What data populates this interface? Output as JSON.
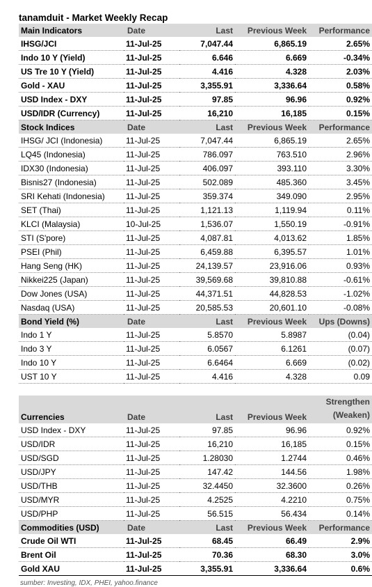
{
  "title": "tanamduit - Market Weekly Recap",
  "sections": [
    {
      "id": "main-indicators",
      "header": [
        "Main Indicators",
        "Date",
        "Last",
        "Previous Week",
        "Performance"
      ],
      "bold": true,
      "rows": [
        [
          "IHSG/JCI",
          "11-Jul-25",
          "7,047.44",
          "6,865.19",
          "2.65%"
        ],
        [
          "Indo 10 Y (Yield)",
          "11-Jul-25",
          "6.646",
          "6.669",
          "-0.34%"
        ],
        [
          "US Tre 10 Y (Yield)",
          "11-Jul-25",
          "4.416",
          "4.328",
          "2.03%"
        ],
        [
          "Gold - XAU",
          "11-Jul-25",
          "3,355.91",
          "3,336.64",
          "0.58%"
        ],
        [
          "USD Index - DXY",
          "11-Jul-25",
          "97.85",
          "96.96",
          "0.92%"
        ],
        [
          "USD/IDR (Currency)",
          "11-Jul-25",
          "16,210",
          "16,185",
          "0.15%"
        ]
      ]
    },
    {
      "id": "stock-indices",
      "header": [
        "Stock Indices",
        "Date",
        "Last",
        "Previous Week",
        "Performance"
      ],
      "bold": false,
      "rows": [
        [
          "IHSG/ JCI (Indonesia)",
          "11-Jul-25",
          "7,047.44",
          "6,865.19",
          "2.65%"
        ],
        [
          "LQ45 (Indonesia)",
          "11-Jul-25",
          "786.097",
          "763.510",
          "2.96%"
        ],
        [
          "IDX30 (Indonesia)",
          "11-Jul-25",
          "406.097",
          "393.110",
          "3.30%"
        ],
        [
          "Bisnis27 (Indonesia)",
          "11-Jul-25",
          "502.089",
          "485.360",
          "3.45%"
        ],
        [
          "SRI Kehati (Indonesia)",
          "11-Jul-25",
          "359.374",
          "349.090",
          "2.95%"
        ],
        [
          "SET (Thai)",
          "11-Jul-25",
          "1,121.13",
          "1,119.94",
          "0.11%"
        ],
        [
          "KLCI (Malaysia)",
          "10-Jul-25",
          "1,536.07",
          "1,550.19",
          "-0.91%"
        ],
        [
          "STI (S'pore)",
          "11-Jul-25",
          "4,087.81",
          "4,013.62",
          "1.85%"
        ],
        [
          "PSEI (Phil)",
          "11-Jul-25",
          "6,459.88",
          "6,395.57",
          "1.01%"
        ],
        [
          "Hang Seng (HK)",
          "11-Jul-25",
          "24,139.57",
          "23,916.06",
          "0.93%"
        ],
        [
          "Nikkei225 (Japan)",
          "11-Jul-25",
          "39,569.68",
          "39,810.88",
          "-0.61%"
        ],
        [
          "Dow Jones (USA)",
          "11-Jul-25",
          "44,371.51",
          "44,828.53",
          "-1.02%"
        ],
        [
          "Nasdaq (USA)",
          "11-Jul-25",
          "20,585.53",
          "20,601.10",
          "-0.08%"
        ]
      ]
    },
    {
      "id": "bond-yield",
      "header": [
        "Bond Yield (%)",
        "Date",
        "Last",
        "Previous Week",
        "Ups (Downs)"
      ],
      "bold": false,
      "rows": [
        [
          "Indo 1 Y",
          "11-Jul-25",
          "5.8570",
          "5.8987",
          "(0.04)"
        ],
        [
          "Indo 3 Y",
          "11-Jul-25",
          "6.0567",
          "6.1261",
          "(0.07)"
        ],
        [
          "Indo 10 Y",
          "11-Jul-25",
          "6.6464",
          "6.669",
          "(0.02)"
        ],
        [
          "UST 10 Y",
          "11-Jul-25",
          "4.416",
          "4.328",
          "0.09"
        ]
      ]
    },
    {
      "id": "currencies",
      "header": [
        "Currencies",
        "Date",
        "Last",
        "Previous Week",
        "Strengthen (Weaken)"
      ],
      "header_line1": "Strengthen",
      "header_line2": "(Weaken)",
      "bold": false,
      "rows": [
        [
          "USD Index - DXY",
          "11-Jul-25",
          "97.85",
          "96.96",
          "0.92%"
        ],
        [
          "USD/IDR",
          "11-Jul-25",
          "16,210",
          "16,185",
          "0.15%"
        ],
        [
          "USD/SGD",
          "11-Jul-25",
          "1.28030",
          "1.2744",
          "0.46%"
        ],
        [
          "USD/JPY",
          "11-Jul-25",
          "147.42",
          "144.56",
          "1.98%"
        ],
        [
          "USD/THB",
          "11-Jul-25",
          "32.4450",
          "32.3600",
          "0.26%"
        ],
        [
          "USD/MYR",
          "11-Jul-25",
          "4.2525",
          "4.2210",
          "0.75%"
        ],
        [
          "USD/PHP",
          "11-Jul-25",
          "56.515",
          "56.434",
          "0.14%"
        ]
      ]
    },
    {
      "id": "commodities",
      "header": [
        "Commodities (USD)",
        "Date",
        "Last",
        "Previous Week",
        "Performance"
      ],
      "bold": true,
      "rows": [
        [
          "Crude Oil WTI",
          "11-Jul-25",
          "68.45",
          "66.49",
          "2.9%"
        ],
        [
          "Brent Oil",
          "11-Jul-25",
          "70.36",
          "68.30",
          "3.0%"
        ],
        [
          "Gold XAU",
          "11-Jul-25",
          "3,355.91",
          "3,336.64",
          "0.6%"
        ]
      ]
    }
  ],
  "source": "sumber: Investing, IDX, PHEI, yahoo.finance"
}
